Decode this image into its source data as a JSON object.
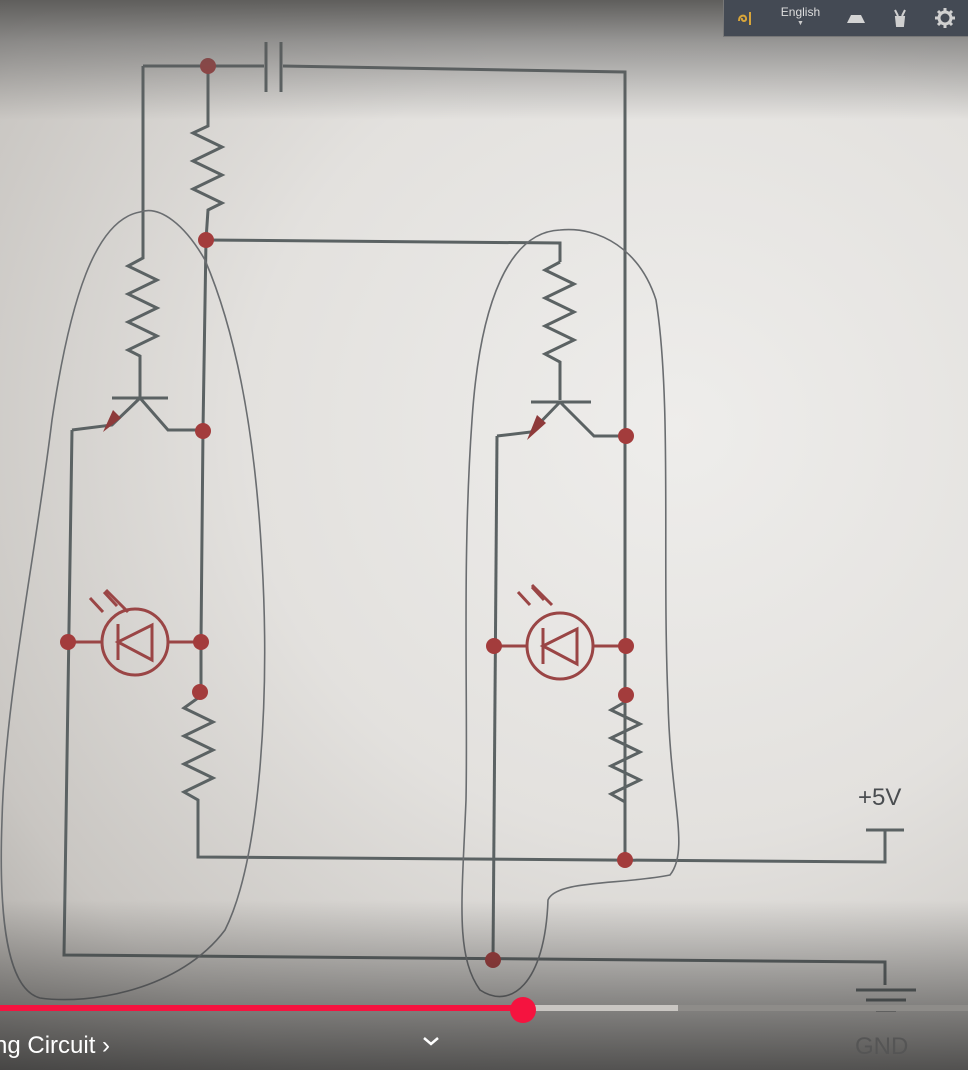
{
  "diagram": {
    "supply_label": "+5V",
    "ground_label": "GND"
  },
  "top_bar": {
    "language": "English",
    "icons": [
      "translate-icon",
      "caption-icon",
      "cast-icon",
      "settings-icon"
    ]
  },
  "player": {
    "chapter_title": "ng Circuit",
    "chapter_arrow": "›",
    "progress_fraction": 0.54,
    "buffered_fraction": 0.7,
    "colors": {
      "played": "#f5133f",
      "buffered": "#c9c6c2",
      "unbuffered": "#8e8c89"
    }
  }
}
